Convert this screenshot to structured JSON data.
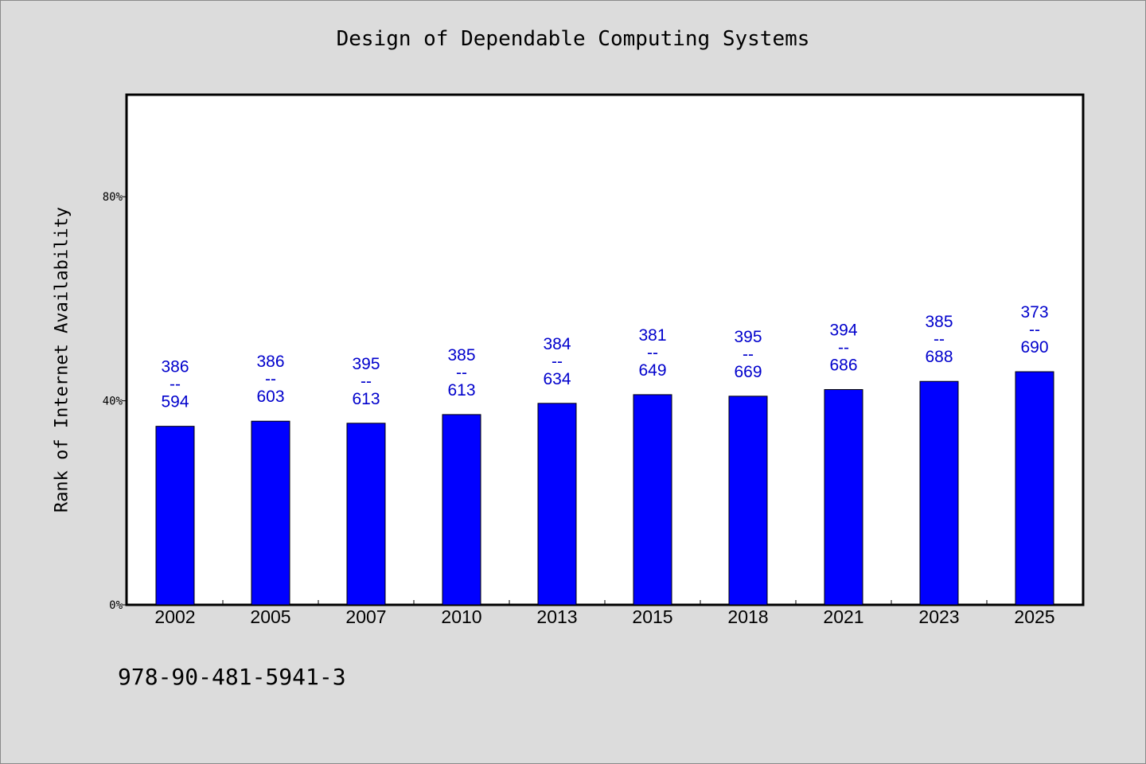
{
  "chart_data": {
    "type": "bar",
    "title": "Design of Dependable Computing Systems",
    "xlabel": "",
    "ylabel": "Rank of Internet Availability",
    "categories": [
      "2002",
      "2005",
      "2007",
      "2010",
      "2013",
      "2015",
      "2018",
      "2021",
      "2023",
      "2025"
    ],
    "values": [
      35.0,
      36.0,
      35.6,
      37.3,
      39.5,
      41.2,
      40.9,
      42.2,
      43.8,
      45.7
    ],
    "value_format": "percent",
    "bar_labels": [
      {
        "top": "386",
        "mid": "--",
        "bottom": "594"
      },
      {
        "top": "386",
        "mid": "--",
        "bottom": "603"
      },
      {
        "top": "395",
        "mid": "--",
        "bottom": "613"
      },
      {
        "top": "385",
        "mid": "--",
        "bottom": "613"
      },
      {
        "top": "384",
        "mid": "--",
        "bottom": "634"
      },
      {
        "top": "381",
        "mid": "--",
        "bottom": "649"
      },
      {
        "top": "395",
        "mid": "--",
        "bottom": "669"
      },
      {
        "top": "394",
        "mid": "--",
        "bottom": "686"
      },
      {
        "top": "385",
        "mid": "--",
        "bottom": "688"
      },
      {
        "top": "373",
        "mid": "--",
        "bottom": "690"
      }
    ],
    "ylim": [
      0,
      100
    ],
    "yticks": [
      0,
      40,
      80
    ],
    "ytick_labels": [
      "0%",
      "40%",
      "80%"
    ],
    "grid": false,
    "legend": "none",
    "bar_color": "#0000ff",
    "label_color": "#0000cc"
  },
  "footer": {
    "isbn": "978-90-481-5941-3"
  }
}
